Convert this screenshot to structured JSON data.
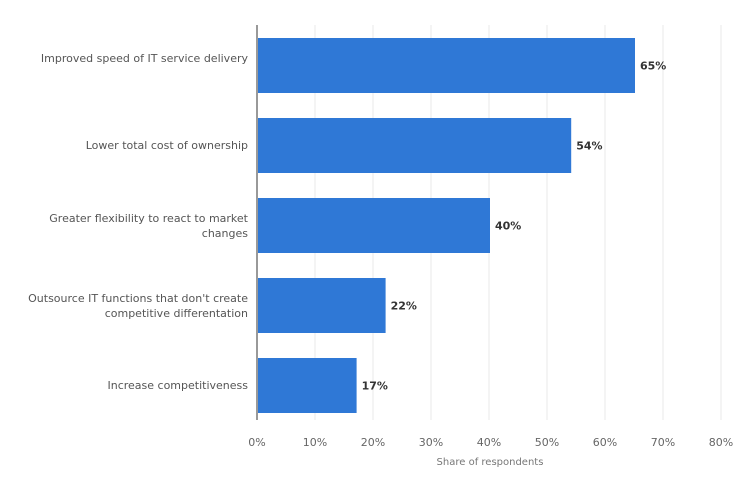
{
  "chart_data": {
    "type": "bar",
    "orientation": "horizontal",
    "categories": [
      "Improved speed of IT service delivery",
      "Lower total cost of ownership",
      "Greater flexibility to react to market changes",
      "Outsource IT functions that don't create competitive differentation",
      "Increase competitiveness"
    ],
    "values": [
      65,
      54,
      40,
      22,
      17
    ],
    "data_labels": [
      "65%",
      "54%",
      "40%",
      "22%",
      "17%"
    ],
    "xlabel": "Share of respondents",
    "xlim": [
      0,
      80
    ],
    "ticks": [
      "0%",
      "10%",
      "20%",
      "30%",
      "40%",
      "50%",
      "60%",
      "70%",
      "80%"
    ],
    "grid": true,
    "bar_color": "#2f78d6"
  }
}
